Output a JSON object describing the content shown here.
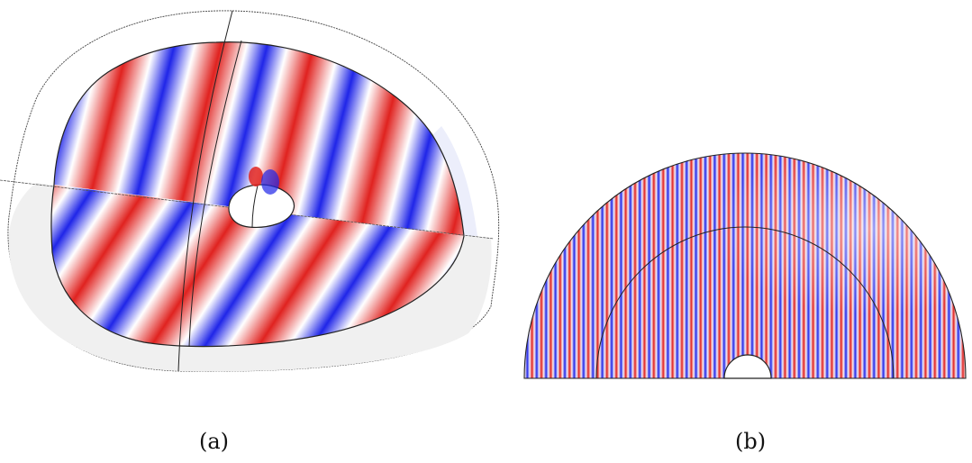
{
  "figure": {
    "panel_a": {
      "label": "(a)"
    },
    "panel_b": {
      "label": "(b)"
    }
  },
  "colors": {
    "wave_positive": "#e0221f",
    "wave_negative": "#1f25e8",
    "background": "#ffffff",
    "outline": "#222222",
    "boundary_layer_fill": "#f0f0f0"
  }
}
